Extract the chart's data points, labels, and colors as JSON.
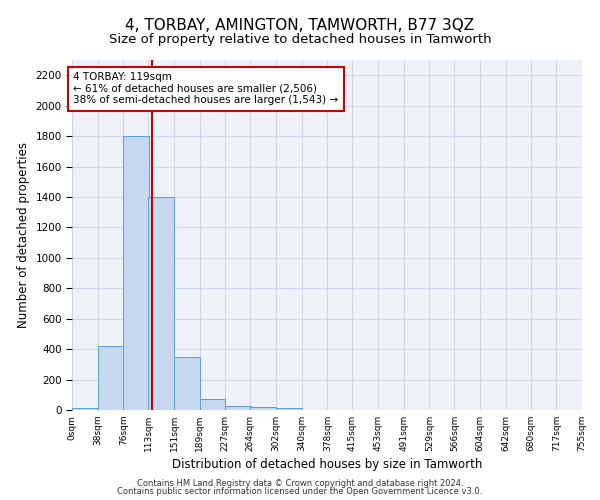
{
  "title": "4, TORBAY, AMINGTON, TAMWORTH, B77 3QZ",
  "subtitle": "Size of property relative to detached houses in Tamworth",
  "xlabel": "Distribution of detached houses by size in Tamworth",
  "ylabel": "Number of detached properties",
  "footer_line1": "Contains HM Land Registry data © Crown copyright and database right 2024.",
  "footer_line2": "Contains public sector information licensed under the Open Government Licence v3.0.",
  "bin_edges": [
    0,
    38,
    76,
    113,
    151,
    189,
    227,
    264,
    302,
    340,
    378,
    415,
    453,
    491,
    529,
    566,
    604,
    642,
    680,
    717,
    755
  ],
  "bar_heights": [
    15,
    420,
    1800,
    1400,
    350,
    75,
    25,
    20,
    15,
    0,
    0,
    0,
    0,
    0,
    0,
    0,
    0,
    0,
    0,
    0
  ],
  "bar_color": "#c5d8f0",
  "bar_edge_color": "#5a9fd4",
  "property_size": 119,
  "vline_color": "#cc0000",
  "annotation_text": "4 TORBAY: 119sqm\n← 61% of detached houses are smaller (2,506)\n38% of semi-detached houses are larger (1,543) →",
  "annotation_box_color": "#ffffff",
  "annotation_box_edge": "#cc0000",
  "ylim": [
    0,
    2300
  ],
  "yticks": [
    0,
    200,
    400,
    600,
    800,
    1000,
    1200,
    1400,
    1600,
    1800,
    2000,
    2200
  ],
  "grid_color": "#d0d8e8",
  "background_color": "#eef2f8",
  "title_fontsize": 11,
  "subtitle_fontsize": 9.5,
  "xlabel_fontsize": 8.5,
  "ylabel_fontsize": 8.5,
  "tick_labels": [
    "0sqm",
    "38sqm",
    "76sqm",
    "113sqm",
    "151sqm",
    "189sqm",
    "227sqm",
    "264sqm",
    "302sqm",
    "340sqm",
    "378sqm",
    "415sqm",
    "453sqm",
    "491sqm",
    "529sqm",
    "566sqm",
    "604sqm",
    "642sqm",
    "680sqm",
    "717sqm",
    "755sqm"
  ]
}
